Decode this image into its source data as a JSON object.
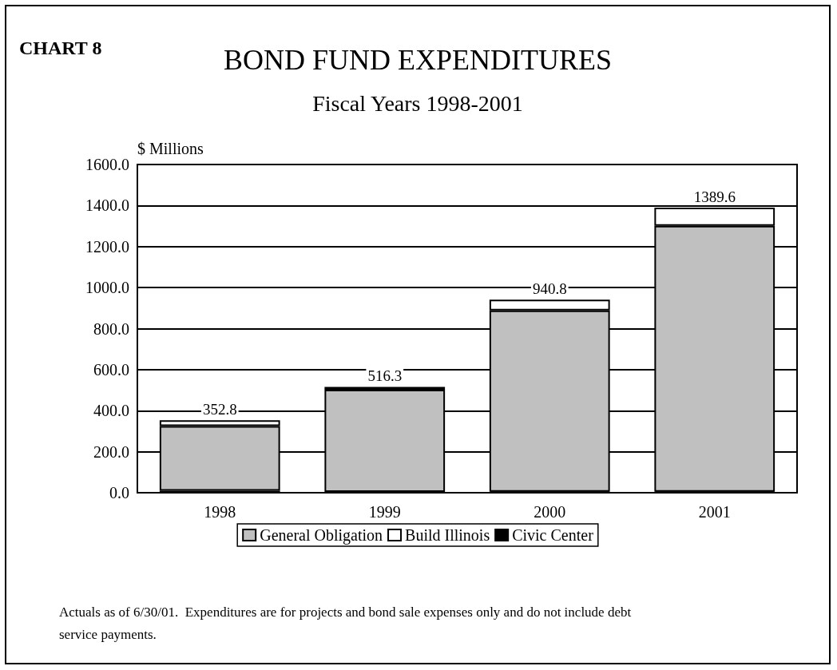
{
  "chart_data": {
    "type": "bar",
    "title": "BOND FUND EXPENDITURES",
    "subtitle": "Fiscal Years 1998-2001",
    "ylabel": "$ Millions",
    "categories": [
      "1998",
      "1999",
      "2000",
      "2001"
    ],
    "series": [
      {
        "name": "Civic Center",
        "color": "#000000",
        "values": [
          10,
          4,
          5,
          5
        ]
      },
      {
        "name": "General Obligation",
        "color": "#c0c0c0",
        "values": [
          315,
          498,
          884,
          1296
        ]
      },
      {
        "name": "Build Illinois",
        "color": "#ffffff",
        "values": [
          27.8,
          14.3,
          51.8,
          88.6
        ]
      }
    ],
    "stacked": true,
    "totals": [
      "352.8",
      "516.3",
      "940.8",
      "1389.6"
    ],
    "ylim": [
      0,
      1600
    ],
    "yticks": [
      {
        "value": 0,
        "label": "0.0"
      },
      {
        "value": 200,
        "label": "200.0"
      },
      {
        "value": 400,
        "label": "400.0"
      },
      {
        "value": 600,
        "label": "600.0"
      },
      {
        "value": 800,
        "label": "800.0"
      },
      {
        "value": 1000,
        "label": "1000.0"
      },
      {
        "value": 1200,
        "label": "1200.0"
      },
      {
        "value": 1400,
        "label": "1400.0"
      },
      {
        "value": 1600,
        "label": "1600.0"
      }
    ],
    "grid": "y",
    "legend": "bottom",
    "annotations": [
      "CHART 8",
      "Actuals as of 6/30/01.  Expenditures are for projects and bond sale expenses only and do not include debt service payments."
    ]
  }
}
